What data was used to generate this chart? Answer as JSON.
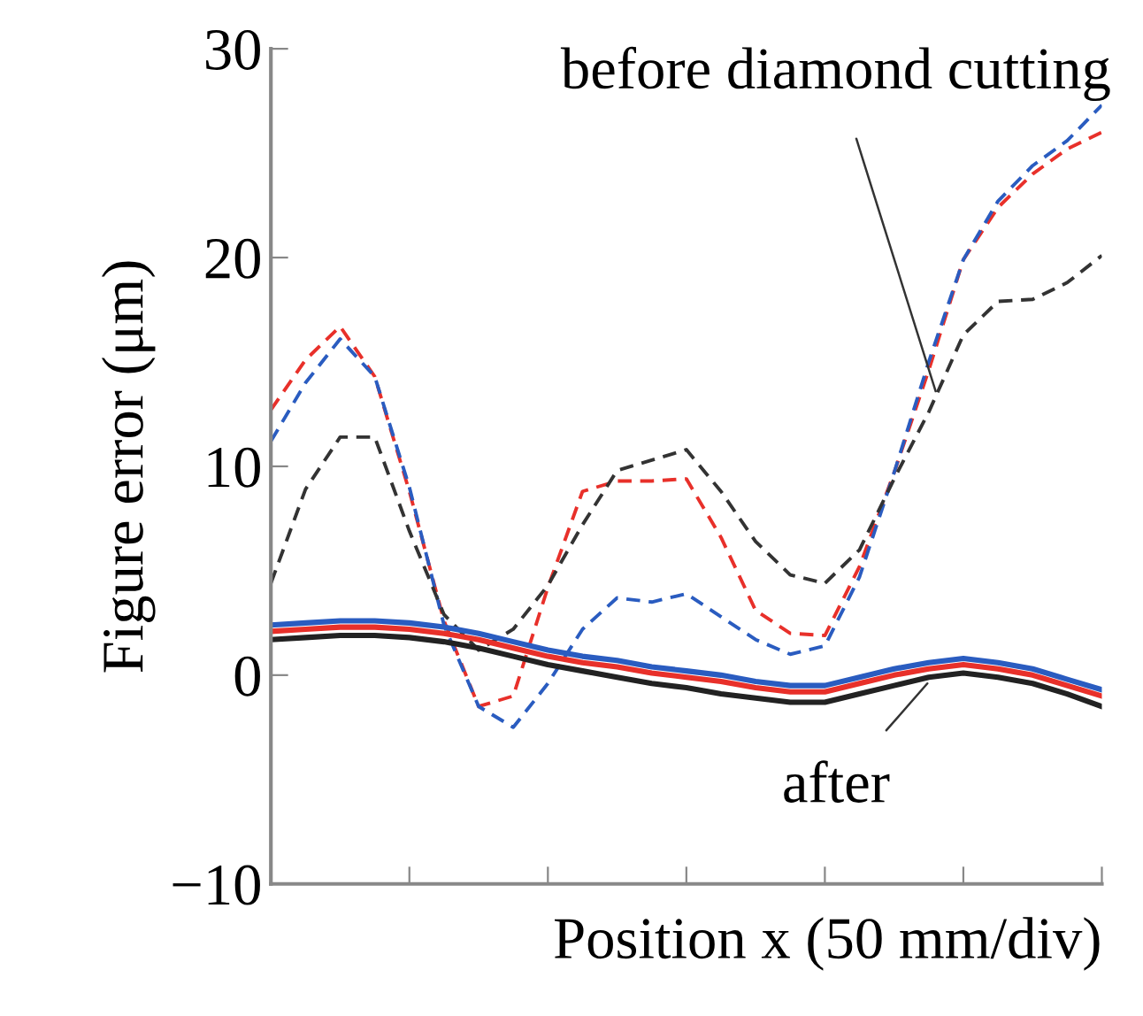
{
  "chart_data": {
    "type": "line",
    "xlabel": "Position x (50 mm/div)",
    "ylabel": "Figure error (μm)",
    "categories": [
      null,
      null,
      null,
      null,
      null,
      null,
      null,
      null,
      null,
      null,
      null,
      null,
      null,
      null,
      null,
      null,
      null,
      null,
      null,
      null,
      null,
      null,
      null,
      null,
      null
    ],
    "ylim": [
      -10,
      30
    ],
    "yticks": [
      {
        "value": -10,
        "label": "−10"
      },
      0,
      10,
      20,
      30
    ],
    "tick_labels": "y",
    "grid": false,
    "legend": false,
    "annotations": [
      "before diamond cutting",
      "after"
    ],
    "series": [
      {
        "color": "#e8302a",
        "line_style": "dashed",
        "values": [
          12.7,
          15.1,
          16.7,
          14.3,
          8.8,
          2.6,
          -1.5,
          -1.0,
          4.2,
          8.8,
          9.3,
          9.3,
          9.4,
          6.6,
          3.1,
          2.0,
          1.9,
          5.2,
          9.7,
          14.6,
          19.9,
          22.4,
          24.0,
          25.2,
          26.0
        ]
      },
      {
        "color": "#2a5cc0",
        "line_style": "dashed",
        "values": [
          11.2,
          14.0,
          16.1,
          14.3,
          9.0,
          2.4,
          -1.5,
          -2.5,
          -0.4,
          2.2,
          3.7,
          3.5,
          3.9,
          2.8,
          1.7,
          1.0,
          1.4,
          4.7,
          9.7,
          15.0,
          19.9,
          22.7,
          24.4,
          25.6,
          27.3
        ]
      },
      {
        "color": "#333333",
        "line_style": "dashed",
        "values": [
          4.4,
          8.9,
          11.4,
          11.4,
          6.9,
          2.9,
          1.2,
          2.2,
          4.3,
          7.2,
          9.8,
          10.3,
          10.8,
          8.8,
          6.4,
          4.8,
          4.4,
          6.0,
          9.4,
          12.6,
          16.3,
          17.9,
          18.0,
          18.8,
          20.1
        ]
      },
      {
        "color": "#2a5cc0",
        "line_style": "solid",
        "values": [
          2.4,
          2.5,
          2.6,
          2.6,
          2.5,
          2.3,
          2.0,
          1.6,
          1.2,
          0.9,
          0.7,
          0.4,
          0.2,
          0.0,
          -0.3,
          -0.5,
          -0.5,
          -0.1,
          0.3,
          0.6,
          0.8,
          0.6,
          0.3,
          -0.2,
          -0.7
        ]
      },
      {
        "color": "#e8302a",
        "line_style": "solid",
        "values": [
          2.1,
          2.2,
          2.3,
          2.3,
          2.2,
          2.0,
          1.7,
          1.3,
          0.9,
          0.6,
          0.4,
          0.1,
          -0.1,
          -0.3,
          -0.6,
          -0.8,
          -0.8,
          -0.4,
          0.0,
          0.3,
          0.5,
          0.3,
          0.0,
          -0.5,
          -1.0
        ]
      },
      {
        "color": "#222222",
        "line_style": "solid",
        "values": [
          1.7,
          1.8,
          1.9,
          1.9,
          1.8,
          1.6,
          1.3,
          0.9,
          0.5,
          0.2,
          -0.1,
          -0.4,
          -0.6,
          -0.9,
          -1.1,
          -1.3,
          -1.3,
          -0.9,
          -0.5,
          -0.1,
          0.1,
          -0.1,
          -0.4,
          -0.9,
          -1.5
        ]
      }
    ]
  }
}
